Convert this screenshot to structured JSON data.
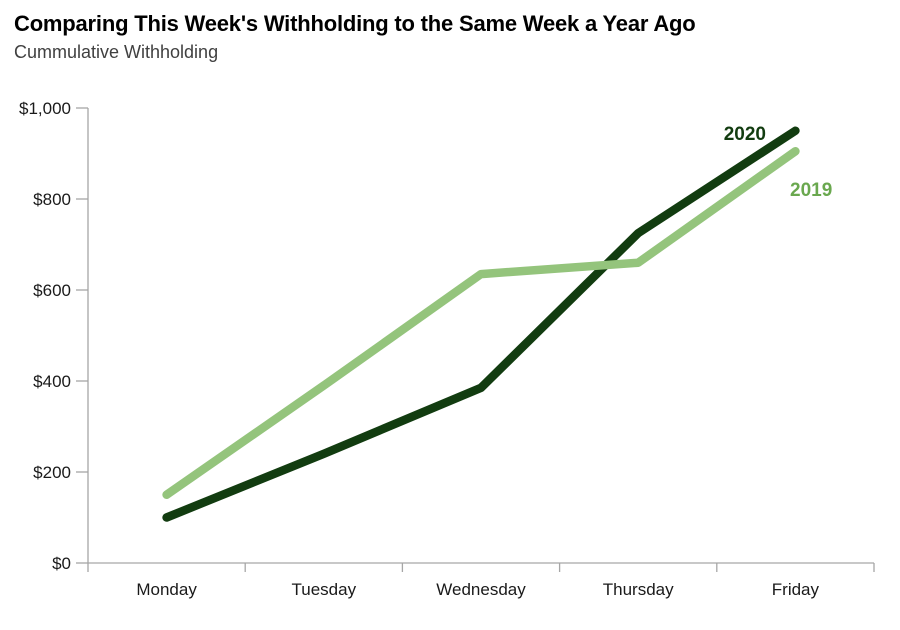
{
  "chart_data": {
    "type": "line",
    "title": "Comparing This Week's Withholding to the Same Week a Year Ago",
    "subtitle": "Cummulative Withholding",
    "categories": [
      "Monday",
      "Tuesday",
      "Wednesday",
      "Thursday",
      "Friday"
    ],
    "series": [
      {
        "name": "2020",
        "values": [
          100,
          240,
          385,
          725,
          950
        ],
        "color": "#123c10",
        "label_color": "#123c10"
      },
      {
        "name": "2019",
        "values": [
          150,
          390,
          635,
          660,
          905
        ],
        "color": "#94c47c",
        "label_color": "#6aa84f"
      }
    ],
    "ylim": [
      0,
      1000
    ],
    "ytick_step": 200,
    "ytick_labels": [
      "$0",
      "$200",
      "$400",
      "$600",
      "$800",
      "$1,000"
    ],
    "xlabel": "",
    "ylabel": "",
    "grid": false,
    "legend": "inline-line-end-labels",
    "axis_color": "#a6a6a6",
    "tick_label_color": "#1a1a1a"
  }
}
